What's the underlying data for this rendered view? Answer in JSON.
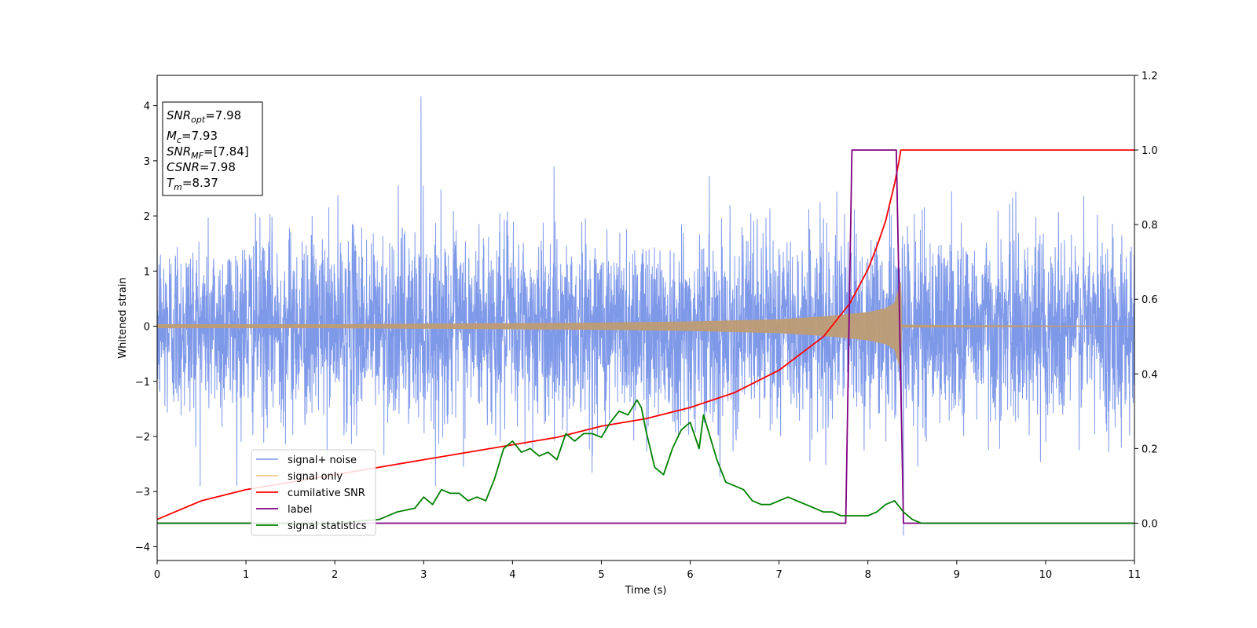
{
  "chart_data": {
    "type": "line",
    "xlabel": "Time (s)",
    "ylabel": "Whitened strain",
    "xlim": [
      0,
      11
    ],
    "ylim_left": [
      -4.25,
      4.55
    ],
    "ylim_right": [
      -0.1,
      1.2
    ],
    "xticks": [
      "0",
      "1",
      "2",
      "3",
      "4",
      "5",
      "6",
      "7",
      "8",
      "9",
      "10",
      "11"
    ],
    "yticks_left": [
      "−4",
      "−3",
      "−2",
      "−1",
      "0",
      "1",
      "2",
      "3",
      "4"
    ],
    "yticks_right": [
      "0.0",
      "0.2",
      "0.4",
      "0.6",
      "0.8",
      "1.0",
      "1.2"
    ],
    "legend_position": "lower-left",
    "colors": {
      "noise": "#7893e8",
      "signal": "#bf9c74",
      "csnr": "#ff0000",
      "label": "#800080",
      "stats": "#008000"
    },
    "info_box": {
      "snr_opt_base": "SNR",
      "snr_opt_sub": "opt",
      "snr_opt_value": "=7.98",
      "mc_base": "M",
      "mc_sub": "c",
      "mc_value": "=7.93",
      "snr_mf_base": "SNR",
      "snr_mf_sub": "MF",
      "snr_mf_value": "=[7.84]",
      "csnr_base": "CSNR",
      "csnr_value": "=7.98",
      "tm_base": "T",
      "tm_sub": "m",
      "tm_value": "=8.37"
    },
    "series": [
      {
        "name": "signal+ noise",
        "axis": "left",
        "description_values": {
          "x_range": [
            0,
            11
          ],
          "typical_amplitude": 1.8,
          "max": 4.17,
          "max_at": 2.97,
          "min": -3.8,
          "min_at": 8.4
        }
      },
      {
        "name": "signal only",
        "axis": "left",
        "envelope": {
          "x": [
            0,
            1,
            2,
            3,
            4,
            5,
            6,
            7,
            7.5,
            8,
            8.2,
            8.3,
            8.37,
            8.38,
            11
          ],
          "y": [
            0.03,
            0.03,
            0.03,
            0.04,
            0.05,
            0.06,
            0.08,
            0.12,
            0.17,
            0.25,
            0.32,
            0.42,
            0.8,
            0.02,
            0.0
          ]
        }
      },
      {
        "name": "cumilative SNR",
        "axis": "right",
        "x": [
          0,
          0.5,
          1,
          1.5,
          2,
          2.5,
          3,
          3.5,
          4,
          4.5,
          5,
          5.5,
          6,
          6.5,
          7,
          7.5,
          7.8,
          8.0,
          8.1,
          8.2,
          8.3,
          8.35,
          8.37,
          8.38,
          11
        ],
        "y": [
          0.01,
          0.06,
          0.09,
          0.11,
          0.13,
          0.15,
          0.17,
          0.19,
          0.21,
          0.23,
          0.26,
          0.28,
          0.31,
          0.35,
          0.41,
          0.5,
          0.59,
          0.68,
          0.74,
          0.81,
          0.91,
          0.97,
          1.0,
          1.0,
          1.0
        ]
      },
      {
        "name": "label",
        "axis": "right",
        "x": [
          0,
          7.75,
          7.82,
          8.32,
          8.4,
          11
        ],
        "y": [
          0,
          0,
          1,
          1,
          0,
          0
        ]
      },
      {
        "name": "signal statistics",
        "axis": "right",
        "x": [
          0,
          1,
          2,
          2.5,
          2.7,
          2.9,
          3.0,
          3.1,
          3.2,
          3.3,
          3.4,
          3.5,
          3.6,
          3.7,
          3.8,
          3.9,
          4.0,
          4.1,
          4.2,
          4.3,
          4.4,
          4.5,
          4.6,
          4.7,
          4.8,
          4.9,
          5.0,
          5.1,
          5.2,
          5.3,
          5.4,
          5.45,
          5.5,
          5.6,
          5.7,
          5.8,
          5.9,
          6.0,
          6.1,
          6.15,
          6.2,
          6.3,
          6.4,
          6.5,
          6.6,
          6.7,
          6.8,
          6.9,
          7.0,
          7.1,
          7.2,
          7.3,
          7.4,
          7.5,
          7.6,
          7.7,
          7.8,
          7.9,
          8.0,
          8.1,
          8.2,
          8.3,
          8.4,
          8.5,
          8.6,
          8.8,
          9,
          10,
          11
        ],
        "y": [
          0.0,
          0.0,
          0.0,
          0.01,
          0.03,
          0.04,
          0.07,
          0.05,
          0.09,
          0.08,
          0.08,
          0.06,
          0.07,
          0.06,
          0.12,
          0.2,
          0.22,
          0.19,
          0.2,
          0.18,
          0.19,
          0.17,
          0.24,
          0.22,
          0.24,
          0.24,
          0.23,
          0.27,
          0.3,
          0.29,
          0.33,
          0.31,
          0.25,
          0.15,
          0.13,
          0.2,
          0.25,
          0.27,
          0.2,
          0.29,
          0.25,
          0.17,
          0.11,
          0.1,
          0.09,
          0.06,
          0.05,
          0.05,
          0.06,
          0.07,
          0.06,
          0.05,
          0.04,
          0.03,
          0.03,
          0.02,
          0.02,
          0.02,
          0.02,
          0.03,
          0.05,
          0.06,
          0.03,
          0.01,
          0.0,
          0.0,
          0.0,
          0.0,
          0.0
        ]
      }
    ]
  }
}
